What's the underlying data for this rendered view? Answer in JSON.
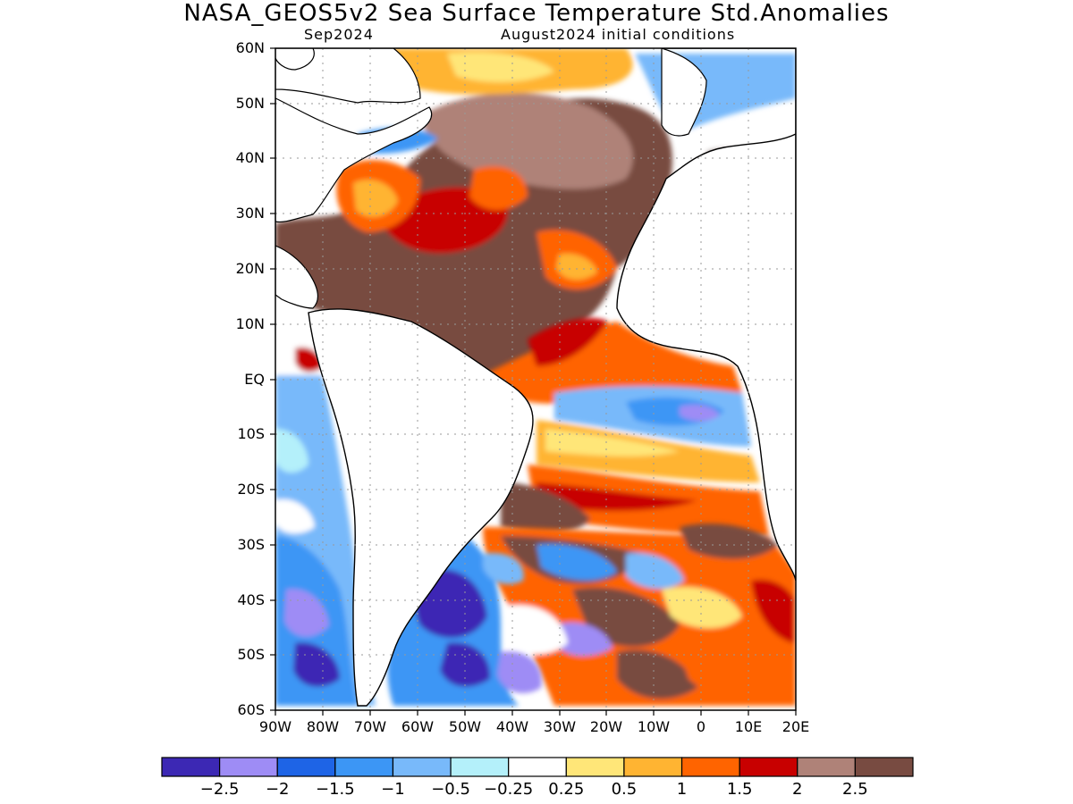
{
  "title": "NASA_GEOS5v2 Sea Surface Temperature Std.Anomalies",
  "subtitle_left": "Sep2024",
  "subtitle_right": "August2024 initial conditions",
  "lat_labels": [
    "60N",
    "50N",
    "40N",
    "30N",
    "20N",
    "10N",
    "EQ",
    "10S",
    "20S",
    "30S",
    "40S",
    "50S",
    "60S"
  ],
  "lon_labels": [
    "90W",
    "80W",
    "70W",
    "60W",
    "50W",
    "40W",
    "30W",
    "20W",
    "10W",
    "0",
    "10E",
    "20E"
  ],
  "colorbar": {
    "colors": [
      "#3c28b4",
      "#9e8cf5",
      "#1e64e6",
      "#3c96f5",
      "#78b9fa",
      "#b4f0fa",
      "#ffffff",
      "#ffe678",
      "#ffb432",
      "#ff6400",
      "#c80000",
      "#af8278",
      "#784b41"
    ],
    "labels": [
      "−2.5",
      "−2",
      "−1.5",
      "−1",
      "−0.5",
      "−0.25",
      "0.25",
      "0.5",
      "1",
      "1.5",
      "2",
      "2.5"
    ]
  },
  "map": {
    "lon_range": [
      -90,
      20
    ],
    "lat_range": [
      -60,
      60
    ]
  }
}
